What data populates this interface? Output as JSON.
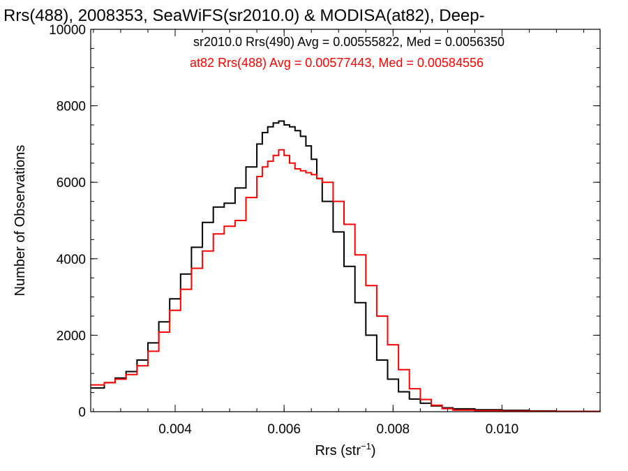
{
  "chart_data": {
    "type": "line",
    "title": "Rrs(488), 2008353, SeaWiFS(sr2010.0) & MODISA(at82), Deep-",
    "xlabel_main": "Rrs (str",
    "xlabel_sup": "−1",
    "xlabel_close": ")",
    "ylabel": "Number of Observations",
    "xlim": [
      0.00245,
      0.0118
    ],
    "ylim": [
      0,
      10000
    ],
    "grid": false,
    "legend_position": "top-right",
    "x_ticks": [
      0.004,
      0.006,
      0.008,
      0.01
    ],
    "x_tick_labels": [
      "0.004",
      "0.006",
      "0.008",
      "0.010"
    ],
    "y_ticks": [
      0,
      2000,
      4000,
      6000,
      8000,
      10000
    ],
    "y_tick_labels": [
      "0",
      "2000",
      "4000",
      "6000",
      "8000",
      "10000"
    ],
    "series": [
      {
        "name": "sr2010.0 Rrs(490) Avg = 0.00555822, Med = 0.0056350",
        "color": "#000000",
        "x": [
          0.00245,
          0.0027,
          0.0029,
          0.0031,
          0.0033,
          0.0035,
          0.0037,
          0.0039,
          0.0041,
          0.0043,
          0.0045,
          0.0047,
          0.0049,
          0.0051,
          0.0053,
          0.0055,
          0.0056,
          0.0057,
          0.0058,
          0.0059,
          0.006,
          0.0061,
          0.0062,
          0.0063,
          0.0064,
          0.0065,
          0.0066,
          0.0067,
          0.0069,
          0.0071,
          0.0073,
          0.0075,
          0.0077,
          0.0079,
          0.0081,
          0.0083,
          0.0085,
          0.0087,
          0.0089,
          0.0091,
          0.0095,
          0.01,
          0.0105,
          0.011,
          0.0118
        ],
        "values": [
          620,
          760,
          880,
          1050,
          1350,
          1800,
          2350,
          2950,
          3600,
          4300,
          4950,
          5350,
          5450,
          5850,
          6400,
          7000,
          7300,
          7450,
          7550,
          7600,
          7500,
          7450,
          7350,
          7200,
          6950,
          6600,
          6100,
          5500,
          4700,
          3800,
          2850,
          2000,
          1350,
          850,
          520,
          330,
          220,
          150,
          100,
          75,
          50,
          35,
          20,
          10,
          5
        ]
      },
      {
        "name": "at82 Rrs(488) Avg = 0.00577443, Med = 0.00584556",
        "color": "#ff0000",
        "x": [
          0.00245,
          0.0027,
          0.0029,
          0.0031,
          0.0033,
          0.0035,
          0.0037,
          0.0039,
          0.0041,
          0.0043,
          0.0045,
          0.0047,
          0.0049,
          0.0051,
          0.0053,
          0.0055,
          0.0056,
          0.0057,
          0.0058,
          0.0059,
          0.006,
          0.0061,
          0.0062,
          0.0063,
          0.0064,
          0.0065,
          0.0066,
          0.0067,
          0.0069,
          0.0071,
          0.0073,
          0.0075,
          0.0077,
          0.0079,
          0.0081,
          0.0083,
          0.0085,
          0.0087,
          0.0089,
          0.0091,
          0.0095,
          0.01,
          0.0105,
          0.011,
          0.0118
        ],
        "values": [
          700,
          760,
          850,
          970,
          1200,
          1580,
          2080,
          2650,
          3200,
          3750,
          4200,
          4650,
          4850,
          5000,
          5600,
          6150,
          6400,
          6550,
          6700,
          6850,
          6700,
          6500,
          6350,
          6300,
          6250,
          6200,
          6100,
          6000,
          5500,
          4900,
          4100,
          3300,
          2500,
          1750,
          1100,
          600,
          320,
          170,
          80,
          40,
          25,
          15,
          10,
          5,
          3
        ]
      }
    ]
  }
}
